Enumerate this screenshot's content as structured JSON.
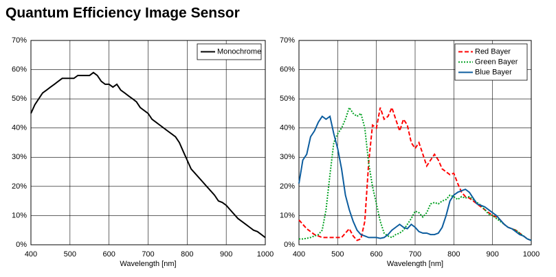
{
  "title": "Quantum Efficiency Image Sensor",
  "chart_data": [
    {
      "type": "line",
      "xlabel": "Wavelength [nm]",
      "x": [
        400,
        410,
        420,
        430,
        440,
        450,
        460,
        470,
        480,
        490,
        500,
        510,
        520,
        530,
        540,
        550,
        560,
        570,
        580,
        590,
        600,
        610,
        620,
        630,
        640,
        650,
        660,
        670,
        680,
        690,
        700,
        710,
        720,
        730,
        740,
        750,
        760,
        770,
        780,
        790,
        800,
        810,
        820,
        830,
        840,
        850,
        860,
        870,
        880,
        890,
        900,
        910,
        920,
        930,
        940,
        950,
        960,
        970,
        980,
        990,
        1000
      ],
      "xlim": [
        400,
        1000
      ],
      "xticks": [
        400,
        500,
        600,
        700,
        800,
        900,
        1000
      ],
      "ylim": [
        0,
        70
      ],
      "yticks": [
        {
          "value": 0,
          "label": "0%"
        },
        {
          "value": 10,
          "label": "10%"
        },
        {
          "value": 20,
          "label": "20%"
        },
        {
          "value": 30,
          "label": "30%"
        },
        {
          "value": 40,
          "label": "40%"
        },
        {
          "value": 50,
          "label": "50%"
        },
        {
          "value": 60,
          "label": "60%"
        },
        {
          "value": 70,
          "label": "70%"
        }
      ],
      "grid": true,
      "legend": "upper right",
      "series": [
        {
          "name": "Monochrome",
          "color": "#000000",
          "dash": "solid",
          "values": [
            45,
            48,
            50,
            52,
            53,
            54,
            55,
            56,
            57,
            57,
            57,
            57,
            58,
            58,
            58,
            58,
            59,
            58,
            56,
            55,
            55,
            54,
            55,
            53,
            52,
            51,
            50,
            49,
            47,
            46,
            45,
            43,
            42,
            41,
            40,
            39,
            38,
            37,
            35,
            32,
            29,
            26,
            24.5,
            23,
            21.5,
            20,
            18.5,
            17,
            15,
            14.5,
            13.5,
            12,
            10.5,
            9,
            8,
            7,
            6,
            5,
            4.5,
            3.5,
            2.5
          ]
        }
      ]
    },
    {
      "type": "line",
      "xlabel": "Wavelength [nm]",
      "x": [
        400,
        410,
        420,
        430,
        440,
        450,
        460,
        470,
        480,
        490,
        500,
        510,
        520,
        530,
        540,
        550,
        560,
        570,
        580,
        590,
        600,
        610,
        620,
        630,
        640,
        650,
        660,
        670,
        680,
        690,
        700,
        710,
        720,
        730,
        740,
        750,
        760,
        770,
        780,
        790,
        800,
        810,
        820,
        830,
        840,
        850,
        860,
        870,
        880,
        890,
        900,
        910,
        920,
        930,
        940,
        950,
        960,
        970,
        980,
        990,
        1000
      ],
      "xlim": [
        400,
        1000
      ],
      "xticks": [
        400,
        500,
        600,
        700,
        800,
        900,
        1000
      ],
      "ylim": [
        0,
        70
      ],
      "yticks": [
        {
          "value": 0,
          "label": "0%"
        },
        {
          "value": 10,
          "label": "10%"
        },
        {
          "value": 20,
          "label": "20%"
        },
        {
          "value": 30,
          "label": "30%"
        },
        {
          "value": 40,
          "label": "40%"
        },
        {
          "value": 50,
          "label": "50%"
        },
        {
          "value": 60,
          "label": "60%"
        },
        {
          "value": 70,
          "label": "70%"
        }
      ],
      "grid": true,
      "legend": "upper right",
      "series": [
        {
          "name": "Red Bayer",
          "color": "#ff0000",
          "dash": "dashed",
          "values": [
            8.5,
            7,
            5.5,
            4.5,
            3.5,
            3,
            2.5,
            2.5,
            2.5,
            2.5,
            2.5,
            2.5,
            4,
            5.5,
            3,
            1.5,
            2,
            8,
            28,
            41,
            40,
            47,
            43,
            44,
            47,
            43,
            39,
            43,
            41,
            35,
            33,
            35,
            31,
            27,
            29,
            31,
            29,
            26,
            25,
            24,
            24.5,
            21,
            18,
            16.5,
            16,
            15,
            14,
            13,
            12,
            11,
            10,
            9.5,
            8.5,
            7,
            6,
            5.5,
            5,
            4,
            3,
            2,
            1.5
          ]
        },
        {
          "name": "Green Bayer",
          "color": "#00a020",
          "dash": "dotted",
          "values": [
            2,
            2,
            2.2,
            2.5,
            3,
            3.5,
            5,
            12,
            24,
            35,
            38,
            40,
            43,
            47,
            45,
            44,
            45,
            40,
            28,
            20,
            14,
            8,
            4,
            3,
            2.5,
            3.5,
            4,
            5,
            7,
            9,
            11.5,
            11,
            9.5,
            11,
            14,
            14.5,
            14,
            15,
            15.5,
            17,
            16.5,
            15.5,
            16.5,
            16,
            16.5,
            15.5,
            14.5,
            13.5,
            12,
            10.5,
            10,
            9,
            8,
            7,
            6,
            5.5,
            5,
            4,
            3,
            2,
            1.5
          ]
        },
        {
          "name": "Blue Bayer",
          "color": "#0b5c9e",
          "dash": "solid",
          "values": [
            21,
            29,
            31,
            37,
            39,
            42,
            44,
            43,
            44,
            38,
            33,
            26,
            17,
            12,
            8,
            5,
            3.5,
            3,
            2.5,
            2.5,
            2.5,
            2.2,
            2.5,
            3.5,
            5,
            6,
            7,
            6,
            5.5,
            7,
            6,
            4.5,
            4,
            4,
            3.5,
            3.5,
            4,
            6,
            10,
            15,
            17,
            18,
            18.5,
            19,
            18,
            16,
            14,
            13.5,
            13,
            12,
            11,
            10,
            8.5,
            7,
            6,
            5.5,
            4.5,
            3.5,
            3,
            2,
            1.5
          ]
        }
      ]
    }
  ]
}
